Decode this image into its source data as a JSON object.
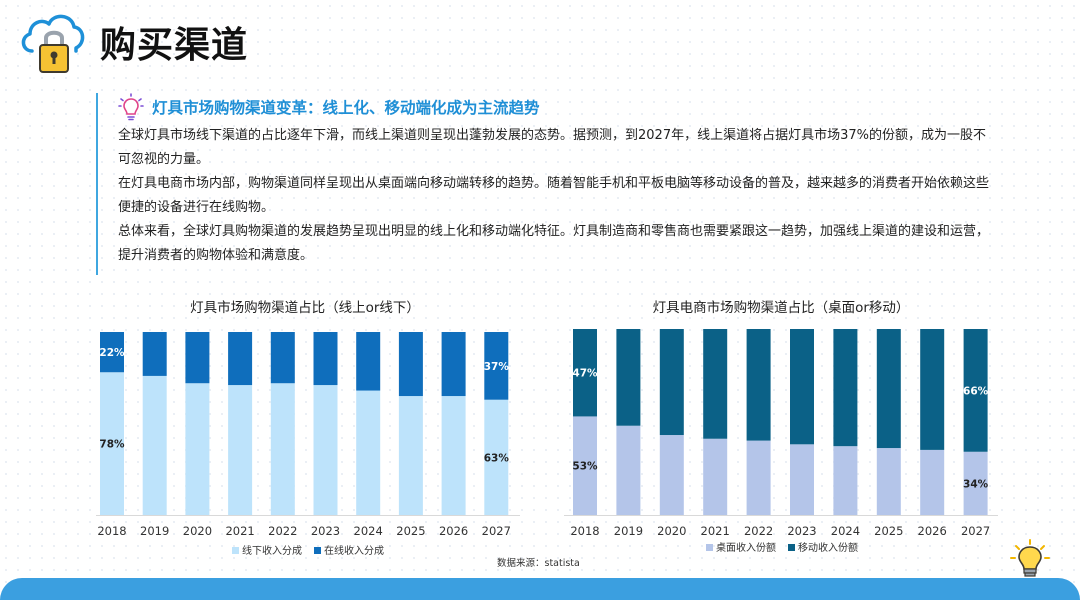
{
  "page": {
    "title": "购买渠道"
  },
  "section": {
    "subtitle": "灯具市场购物渠道变革：线上化、移动端化成为主流趋势",
    "paragraphs": [
      "全球灯具市场线下渠道的占比逐年下滑，而线上渠道则呈现出蓬勃发展的态势。据预测，到2027年，线上渠道将占据灯具市场37%的份额，成为一股不可忽视的力量。",
      "在灯具电商市场内部，购物渠道同样呈现出从桌面端向移动端转移的趋势。随着智能手机和平板电脑等移动设备的普及，越来越多的消费者开始依赖这些便捷的设备进行在线购物。",
      "总体来看，全球灯具购物渠道的发展趋势呈现出明显的线上化和移动端化特征。灯具制造商和零售商也需要紧跟这一趋势，加强线上渠道的建设和运营，提升消费者的购物体验和满意度。"
    ]
  },
  "source": "数据来源：statista",
  "chart_data": [
    {
      "type": "bar",
      "stacked": true,
      "title": "灯具市场购物渠道占比（线上or线下）",
      "categories": [
        "2018",
        "2019",
        "2020",
        "2021",
        "2022",
        "2023",
        "2024",
        "2025",
        "2026",
        "2027"
      ],
      "series": [
        {
          "name": "线下收入分成",
          "color": "#bde3fb",
          "values": [
            78,
            76,
            72,
            71,
            72,
            71,
            68,
            65,
            65,
            63
          ]
        },
        {
          "name": "在线收入分成",
          "color": "#0f6ebc",
          "values": [
            22,
            24,
            28,
            29,
            28,
            29,
            32,
            35,
            35,
            37
          ]
        }
      ],
      "data_labels": [
        {
          "series": 0,
          "index": 0,
          "text": "78%"
        },
        {
          "series": 1,
          "index": 0,
          "text": "22%"
        },
        {
          "series": 0,
          "index": 9,
          "text": "63%"
        },
        {
          "series": 1,
          "index": 9,
          "text": "37%"
        }
      ],
      "ylim": [
        0,
        100
      ],
      "legend_position": "bottom"
    },
    {
      "type": "bar",
      "stacked": true,
      "title": "灯具电商市场购物渠道占比（桌面or移动）",
      "categories": [
        "2018",
        "2019",
        "2020",
        "2021",
        "2022",
        "2023",
        "2024",
        "2025",
        "2026",
        "2027"
      ],
      "series": [
        {
          "name": "桌面收入份额",
          "color": "#b4c5e9",
          "values": [
            53,
            48,
            43,
            41,
            40,
            38,
            37,
            36,
            35,
            34
          ]
        },
        {
          "name": "移动收入份额",
          "color": "#0b6187",
          "values": [
            47,
            52,
            57,
            59,
            60,
            62,
            63,
            64,
            65,
            66
          ]
        }
      ],
      "data_labels": [
        {
          "series": 0,
          "index": 0,
          "text": "53%"
        },
        {
          "series": 1,
          "index": 0,
          "text": "47%"
        },
        {
          "series": 0,
          "index": 9,
          "text": "34%"
        },
        {
          "series": 1,
          "index": 9,
          "text": "66%"
        }
      ],
      "ylim": [
        0,
        100
      ],
      "legend_position": "bottom"
    }
  ]
}
